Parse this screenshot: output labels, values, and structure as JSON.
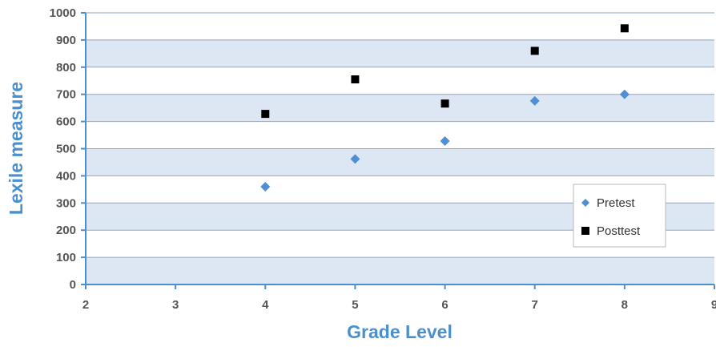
{
  "chart_data": {
    "type": "scatter",
    "xlabel": "Grade Level",
    "ylabel": "Lexile measure",
    "xlim": [
      2,
      9
    ],
    "ylim": [
      0,
      1000
    ],
    "x_ticks": [
      "2",
      "3",
      "4",
      "5",
      "6",
      "7",
      "8",
      "9"
    ],
    "y_ticks": [
      "0",
      "100",
      "200",
      "300",
      "400",
      "500",
      "600",
      "700",
      "800",
      "900",
      "1000"
    ],
    "grid": "horizontal bands",
    "legend_position": "lower-right",
    "series": [
      {
        "name": "Pretest",
        "marker": "diamond",
        "color": "#4f8fd4",
        "x": [
          4,
          5,
          6,
          7,
          8
        ],
        "y": [
          360,
          462,
          528,
          676,
          700
        ]
      },
      {
        "name": "Posttest",
        "marker": "square",
        "color": "#000000",
        "x": [
          4,
          5,
          6,
          7,
          8
        ],
        "y": [
          628,
          755,
          666,
          860,
          943
        ]
      }
    ]
  },
  "colors": {
    "band": "#dde6f3",
    "gridline": "#8ea6c8",
    "axis": "#4a90d0",
    "title": "#4a90d0"
  }
}
